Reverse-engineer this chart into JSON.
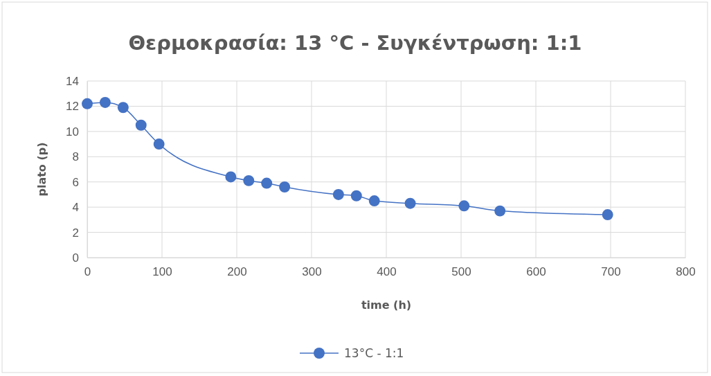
{
  "chart_data": {
    "type": "line",
    "title": "Θερμοκρασία: 13 °C - Συγκέντρωση: 1:1",
    "xlabel": "time (h)",
    "ylabel": "plato (p)",
    "x": [
      0,
      24,
      48,
      72,
      96,
      192,
      216,
      240,
      264,
      336,
      360,
      384,
      432,
      504,
      552,
      696
    ],
    "series": [
      {
        "name": "13°C - 1:1",
        "color": "#4472c4",
        "values": [
          12.2,
          12.3,
          11.9,
          10.5,
          9.0,
          6.4,
          6.1,
          5.9,
          5.6,
          5.0,
          4.9,
          4.5,
          4.3,
          4.1,
          3.7,
          3.4
        ]
      }
    ],
    "xlim": [
      0,
      800
    ],
    "xticks": [
      0,
      100,
      200,
      300,
      400,
      500,
      600,
      700,
      800
    ],
    "ylim": [
      0,
      14
    ],
    "yticks": [
      0,
      2,
      4,
      6,
      8,
      10,
      12,
      14
    ],
    "grid": true,
    "legend": "bottom",
    "marker": "circle",
    "line_style": "solid"
  }
}
